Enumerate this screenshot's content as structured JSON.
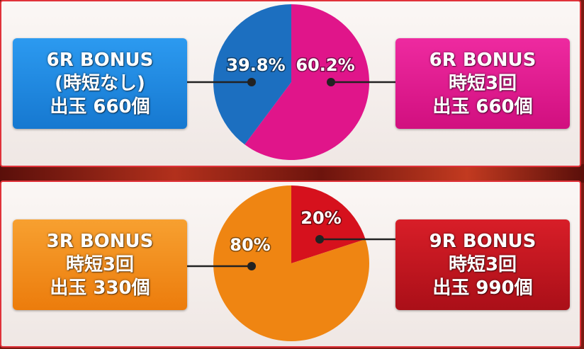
{
  "chart_data": [
    {
      "type": "pie",
      "start": "top",
      "slices": [
        {
          "label": "6R BONUS 時短3回",
          "value": 60.2,
          "value_label": "60.2%",
          "color": "#e0158a",
          "side": "right"
        },
        {
          "label": "6R BONUS (時短なし)",
          "value": 39.8,
          "value_label": "39.8%",
          "color": "#1c6fc0",
          "side": "left"
        }
      ]
    },
    {
      "type": "pie",
      "start": "top",
      "slices": [
        {
          "label": "9R BONUS 時短3回",
          "value": 20,
          "value_label": "20%",
          "color": "#d6111d",
          "side": "right"
        },
        {
          "label": "3R BONUS 時短3回",
          "value": 80,
          "value_label": "80%",
          "color": "#ef8512",
          "side": "left"
        }
      ]
    }
  ],
  "boxes": {
    "top_left": {
      "line1": "6R BONUS",
      "line2": "(時短なし)",
      "line3": "出玉 660個",
      "color": "#1e8ae0"
    },
    "top_right": {
      "line1": "6R BONUS",
      "line2": "時短3回",
      "line3": "出玉 660個",
      "color": "#e01890"
    },
    "bottom_left": {
      "line1": "3R BONUS",
      "line2": "時短3回",
      "line3": "出玉 330個",
      "color": "#f08a18"
    },
    "bottom_right": {
      "line1": "9R BONUS",
      "line2": "時短3回",
      "line3": "出玉 990個",
      "color": "#c4151f"
    }
  },
  "colors": {
    "border": "#e0323a",
    "connector": "#222222"
  }
}
